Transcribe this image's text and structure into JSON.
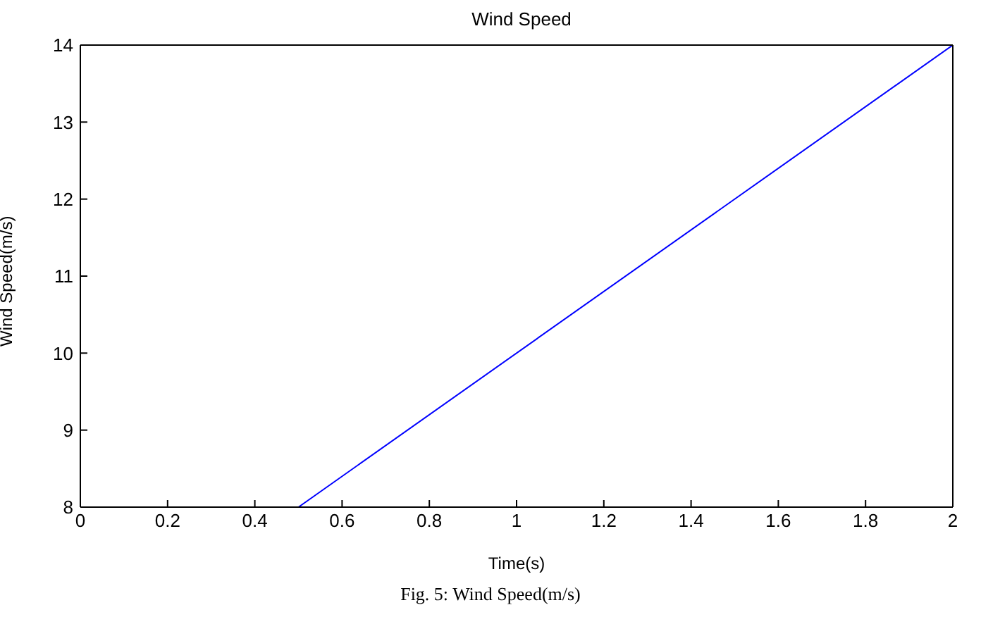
{
  "chart_data": {
    "type": "line",
    "title": "Wind Speed",
    "xlabel": "Time(s)",
    "ylabel": "Wind Speed(m/s)",
    "x": [
      0,
      0.5,
      2
    ],
    "series": [
      {
        "color": "#0000ff",
        "values": [
          8,
          8,
          14
        ]
      }
    ],
    "xlim": [
      0,
      2
    ],
    "xticks": [
      0,
      0.2,
      0.4,
      0.6,
      0.8,
      1,
      1.2,
      1.4,
      1.6,
      1.8,
      2
    ],
    "ylim": [
      8,
      14
    ],
    "yticks": [
      8,
      9,
      10,
      11,
      12,
      13,
      14
    ],
    "grid": false,
    "marker": "none",
    "line_style": "solid",
    "annotations": [
      "Fig. 5: Wind Speed(m/s)"
    ]
  }
}
